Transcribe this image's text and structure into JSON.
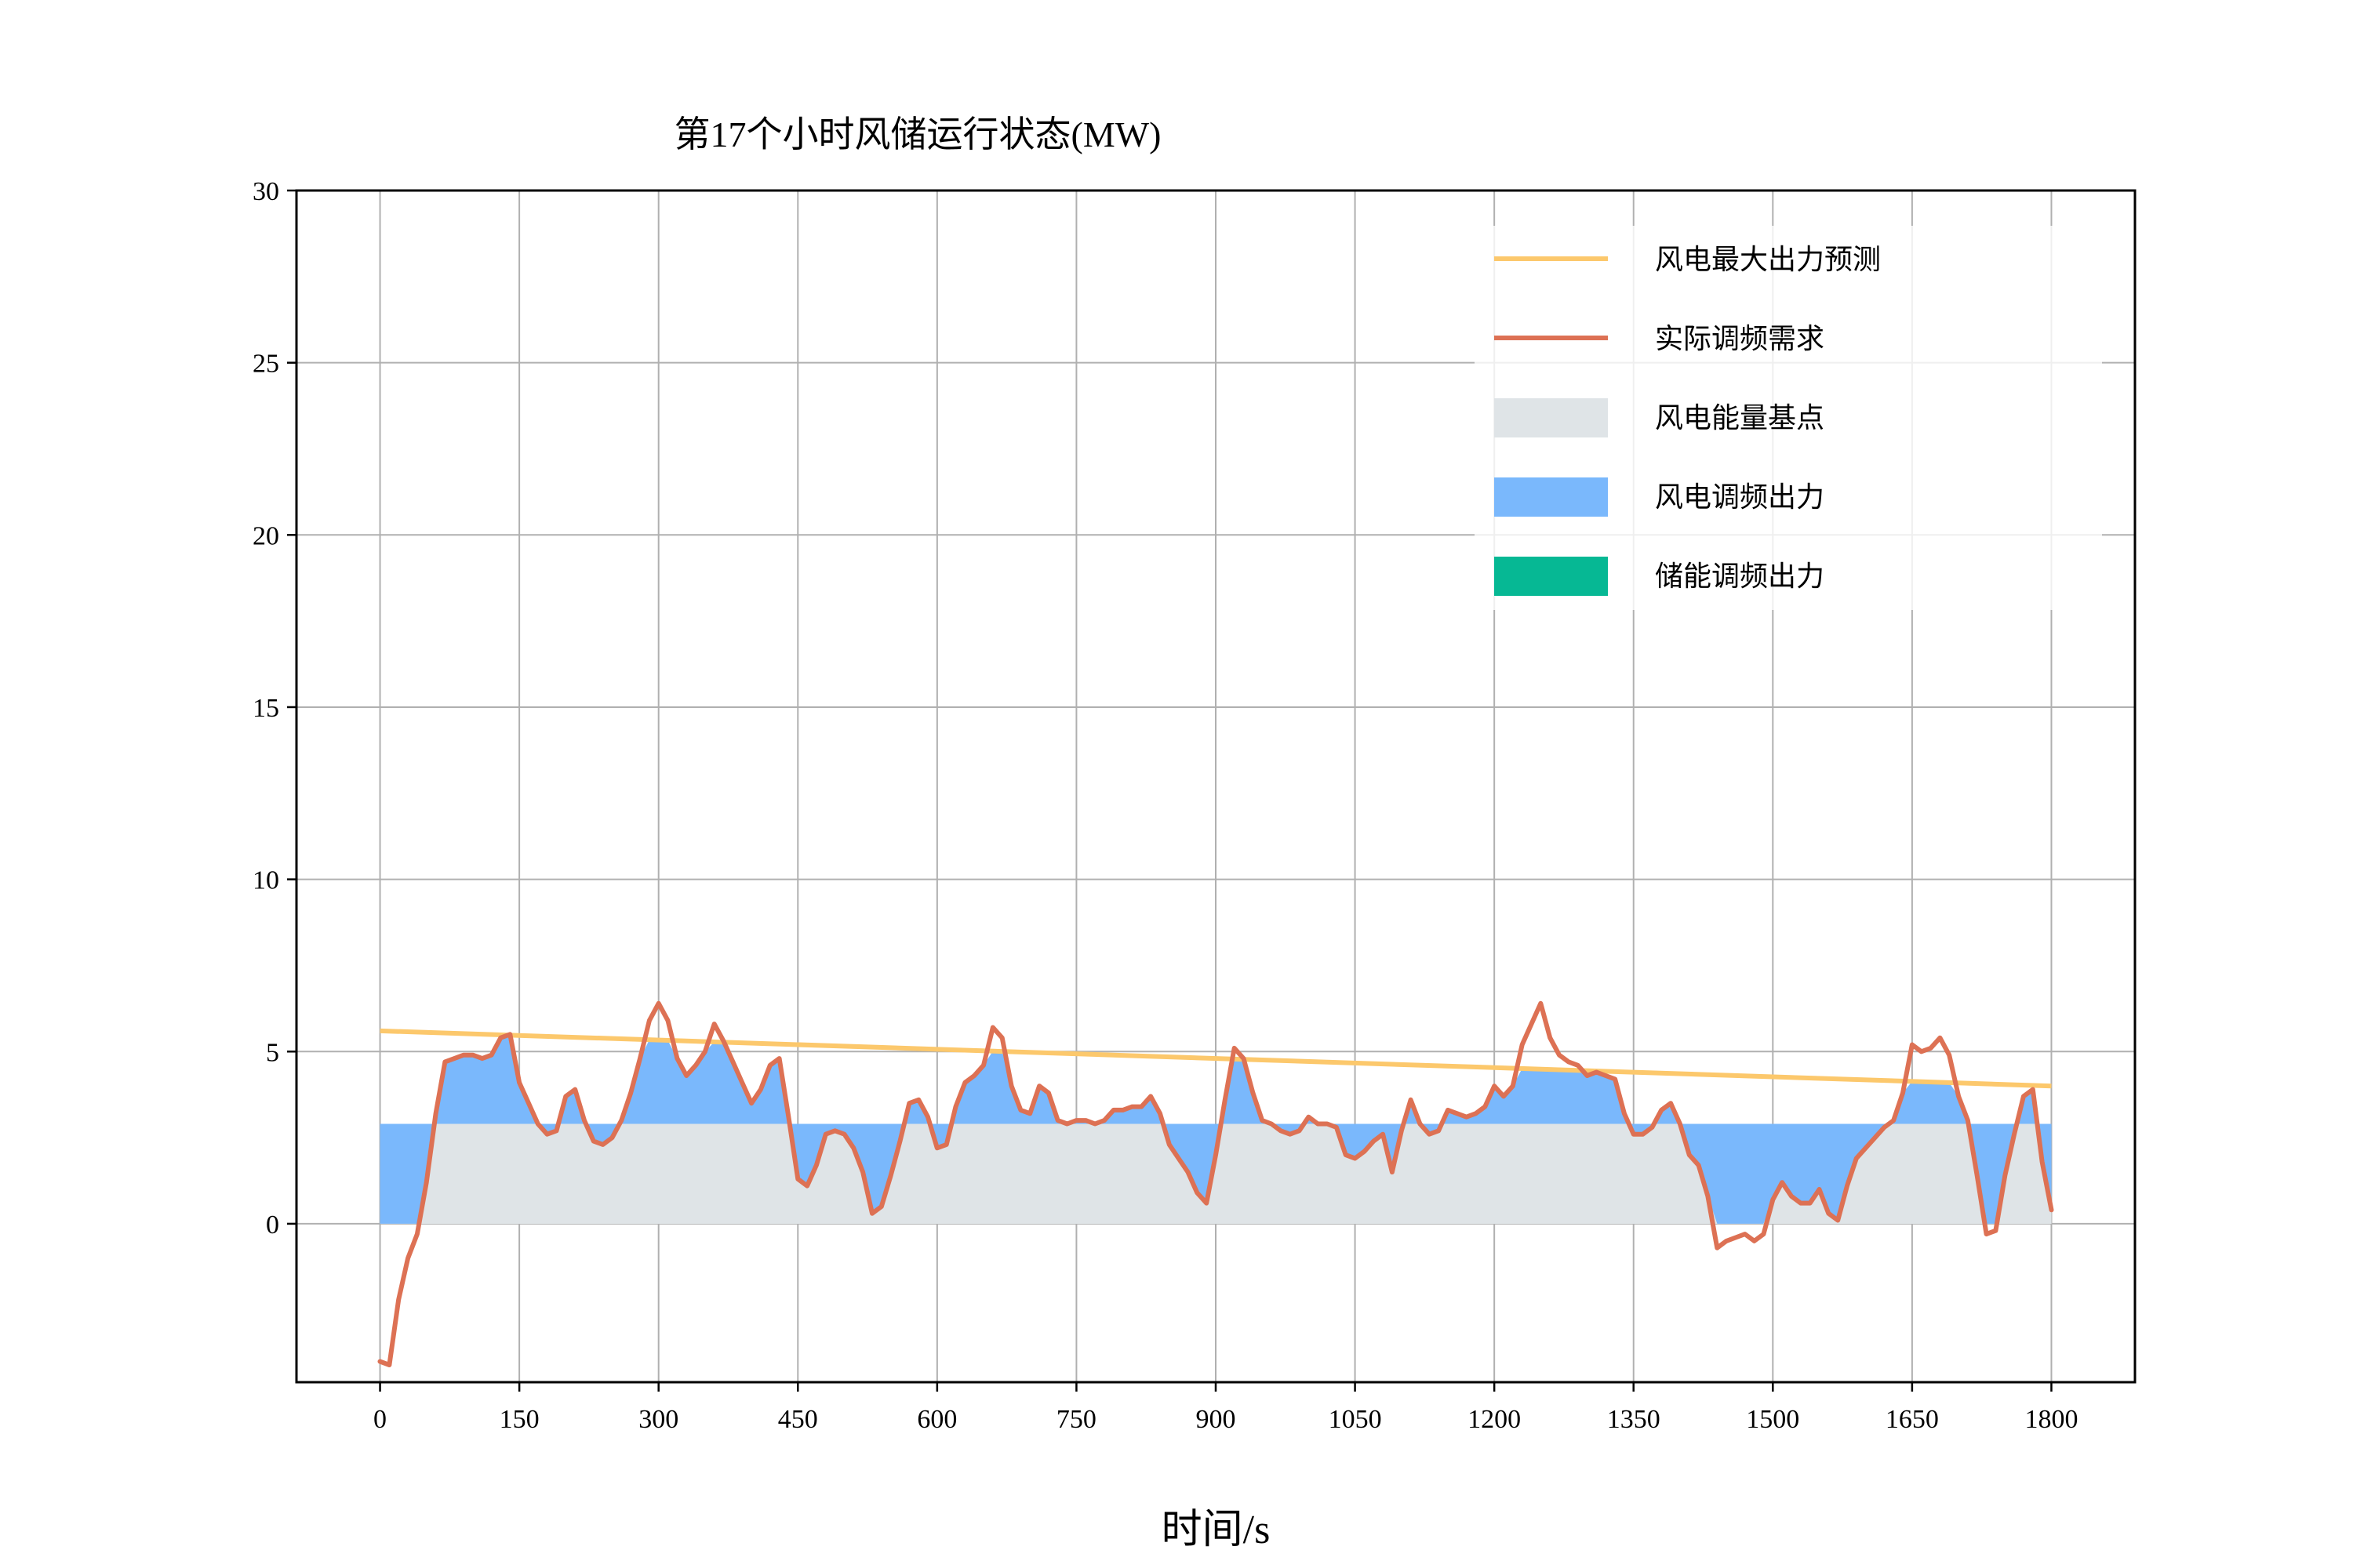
{
  "chart_data": {
    "type": "line",
    "title": "第17个小时风储运行状态(MW)",
    "xlabel": "时间/s",
    "ylabel": "",
    "xlim": [
      -90,
      1890
    ],
    "ylim": [
      -4.6,
      30
    ],
    "xticks": [
      0,
      150,
      300,
      450,
      600,
      750,
      900,
      1050,
      1200,
      1350,
      1500,
      1650,
      1800
    ],
    "yticks": [
      0,
      5,
      10,
      15,
      20,
      25,
      30
    ],
    "grid": true,
    "legend_position": "upper-right",
    "base_point": 2.9,
    "series": [
      {
        "name": "风电最大出力预测",
        "kind": "line",
        "color": "#fcc86c",
        "x": [
          0,
          1800
        ],
        "values": [
          5.6,
          4.0
        ]
      },
      {
        "name": "实际调频需求",
        "kind": "line",
        "color": "#dd7154",
        "x": [
          0,
          10,
          20,
          30,
          40,
          50,
          60,
          70,
          80,
          90,
          100,
          110,
          120,
          130,
          140,
          150,
          160,
          170,
          180,
          190,
          200,
          210,
          220,
          230,
          240,
          250,
          260,
          270,
          280,
          290,
          300,
          310,
          320,
          330,
          340,
          350,
          360,
          370,
          380,
          390,
          400,
          410,
          420,
          430,
          440,
          450,
          460,
          470,
          480,
          490,
          500,
          510,
          520,
          530,
          540,
          550,
          560,
          570,
          580,
          590,
          600,
          610,
          620,
          630,
          640,
          650,
          660,
          670,
          680,
          690,
          700,
          710,
          720,
          730,
          740,
          750,
          760,
          770,
          780,
          790,
          800,
          810,
          820,
          830,
          840,
          850,
          860,
          870,
          880,
          890,
          900,
          910,
          920,
          930,
          940,
          950,
          960,
          970,
          980,
          990,
          1000,
          1010,
          1020,
          1030,
          1040,
          1050,
          1060,
          1070,
          1080,
          1090,
          1100,
          1110,
          1120,
          1130,
          1140,
          1150,
          1160,
          1170,
          1180,
          1190,
          1200,
          1210,
          1220,
          1230,
          1240,
          1250,
          1260,
          1270,
          1280,
          1290,
          1300,
          1310,
          1320,
          1330,
          1340,
          1350,
          1360,
          1370,
          1380,
          1390,
          1400,
          1410,
          1420,
          1430,
          1440,
          1450,
          1460,
          1470,
          1480,
          1490,
          1500,
          1510,
          1520,
          1530,
          1540,
          1550,
          1560,
          1570,
          1580,
          1590,
          1600,
          1610,
          1620,
          1630,
          1640,
          1650,
          1660,
          1670,
          1680,
          1690,
          1700,
          1710,
          1720,
          1730,
          1740,
          1750,
          1760,
          1770,
          1780,
          1790,
          1800
        ],
        "values": [
          -4.0,
          -4.1,
          -2.2,
          -1.0,
          -0.3,
          1.2,
          3.2,
          4.7,
          4.8,
          4.9,
          4.9,
          4.8,
          4.9,
          5.4,
          5.5,
          4.1,
          3.5,
          2.9,
          2.6,
          2.7,
          3.7,
          3.9,
          3.0,
          2.4,
          2.3,
          2.5,
          3.0,
          3.8,
          4.8,
          5.9,
          6.4,
          5.9,
          4.8,
          4.3,
          4.6,
          5.0,
          5.8,
          5.3,
          4.7,
          4.1,
          3.5,
          3.9,
          4.6,
          4.8,
          3.1,
          1.3,
          1.1,
          1.7,
          2.6,
          2.7,
          2.6,
          2.2,
          1.5,
          0.3,
          0.5,
          1.4,
          2.4,
          3.5,
          3.6,
          3.1,
          2.2,
          2.3,
          3.4,
          4.1,
          4.3,
          4.6,
          5.7,
          5.4,
          4.0,
          3.3,
          3.2,
          4.0,
          3.8,
          3.0,
          2.9,
          3.0,
          3.0,
          2.9,
          3.0,
          3.3,
          3.3,
          3.4,
          3.4,
          3.7,
          3.2,
          2.3,
          1.9,
          1.5,
          0.9,
          0.6,
          2.0,
          3.6,
          5.1,
          4.8,
          3.8,
          3.0,
          2.9,
          2.7,
          2.6,
          2.7,
          3.1,
          2.9,
          2.9,
          2.8,
          2.0,
          1.9,
          2.1,
          2.4,
          2.6,
          1.5,
          2.7,
          3.6,
          2.9,
          2.6,
          2.7,
          3.3,
          3.2,
          3.1,
          3.2,
          3.4,
          4.0,
          3.7,
          4.0,
          5.2,
          5.8,
          6.4,
          5.4,
          4.9,
          4.7,
          4.6,
          4.3,
          4.4,
          4.3,
          4.2,
          3.2,
          2.6,
          2.6,
          2.8,
          3.3,
          3.5,
          2.9,
          2.0,
          1.7,
          0.8,
          -0.7,
          -0.5,
          -0.4,
          -0.3,
          -0.5,
          -0.3,
          0.7,
          1.2,
          0.8,
          0.6,
          0.6,
          1.0,
          0.3,
          0.1,
          1.1,
          1.9,
          2.2,
          2.5,
          2.8,
          3.0,
          3.8,
          5.2,
          5.0,
          5.1,
          5.4,
          4.9,
          3.7,
          3.0,
          1.4,
          -0.3,
          -0.2,
          1.4,
          2.6,
          3.7,
          3.9,
          1.8,
          0.4
        ]
      },
      {
        "name": "风电能量基点",
        "kind": "area",
        "color": "#dfe4e7"
      },
      {
        "name": "风电调频出力",
        "kind": "area",
        "color": "#7ab8fc"
      },
      {
        "name": "储能调频出力",
        "kind": "area",
        "color": "#06b894"
      }
    ]
  }
}
